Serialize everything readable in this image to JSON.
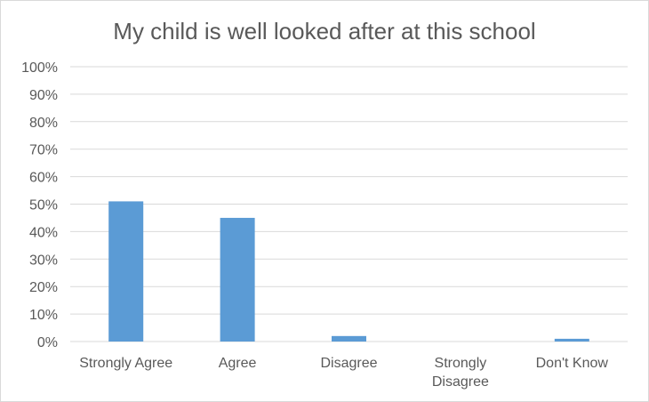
{
  "chart_data": {
    "type": "bar",
    "title": "My child is well looked after at this school",
    "categories": [
      [
        "Strongly Agree"
      ],
      [
        "Agree"
      ],
      [
        "Disagree"
      ],
      [
        "Strongly",
        "Disagree"
      ],
      [
        "Don't Know"
      ]
    ],
    "values": [
      51,
      45,
      2,
      0,
      1
    ],
    "ylim": [
      0,
      100
    ],
    "yticks": [
      "0%",
      "10%",
      "20%",
      "30%",
      "40%",
      "50%",
      "60%",
      "70%",
      "80%",
      "90%",
      "100%"
    ],
    "grid": true,
    "legend": "none",
    "bar_color": "#5b9bd5",
    "grid_color": "#d9d9d9"
  }
}
